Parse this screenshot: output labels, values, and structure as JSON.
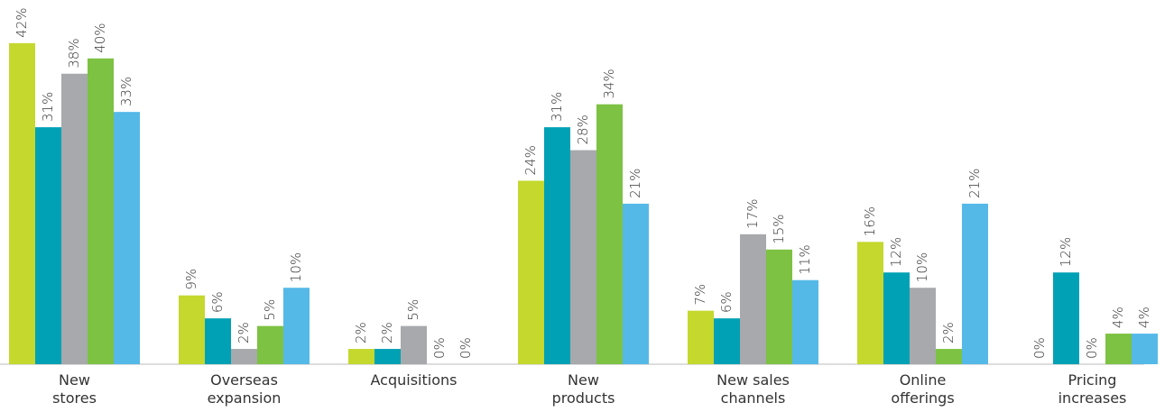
{
  "chart_data": {
    "type": "bar",
    "categories": [
      "New\nstores",
      "Overseas\nexpansion",
      "Acquisitions",
      "New\nproducts",
      "New sales\nchannels",
      "Online\nofferings",
      "Pricing\nincreases"
    ],
    "series": [
      {
        "color": "#c4d82e",
        "values": [
          42,
          9,
          2,
          24,
          7,
          16,
          0
        ],
        "value_labels": [
          "42%",
          "9%",
          "2%",
          "24%",
          "7%",
          "16%",
          "0%"
        ]
      },
      {
        "color": "#00a1b5",
        "values": [
          31,
          6,
          2,
          31,
          6,
          12,
          12
        ],
        "value_labels": [
          "31%",
          "6%",
          "2%",
          "31%",
          "6%",
          "12%",
          "12%"
        ]
      },
      {
        "color": "#a7a9ac",
        "values": [
          38,
          2,
          5,
          28,
          17,
          10,
          0
        ],
        "value_labels": [
          "38%",
          "2%",
          "5%",
          "28%",
          "17%",
          "10%",
          "0%"
        ]
      },
      {
        "color": "#7dc242",
        "values": [
          40,
          5,
          0,
          34,
          15,
          2,
          4
        ],
        "value_labels": [
          "40%",
          "5%",
          "0%",
          "34%",
          "15%",
          "2%",
          "4%"
        ]
      },
      {
        "color": "#55b9e8",
        "values": [
          33,
          10,
          0,
          21,
          11,
          21,
          4
        ],
        "value_labels": [
          "33%",
          "10%",
          "0%",
          "21%",
          "11%",
          "21%",
          "4%"
        ]
      }
    ]
  }
}
